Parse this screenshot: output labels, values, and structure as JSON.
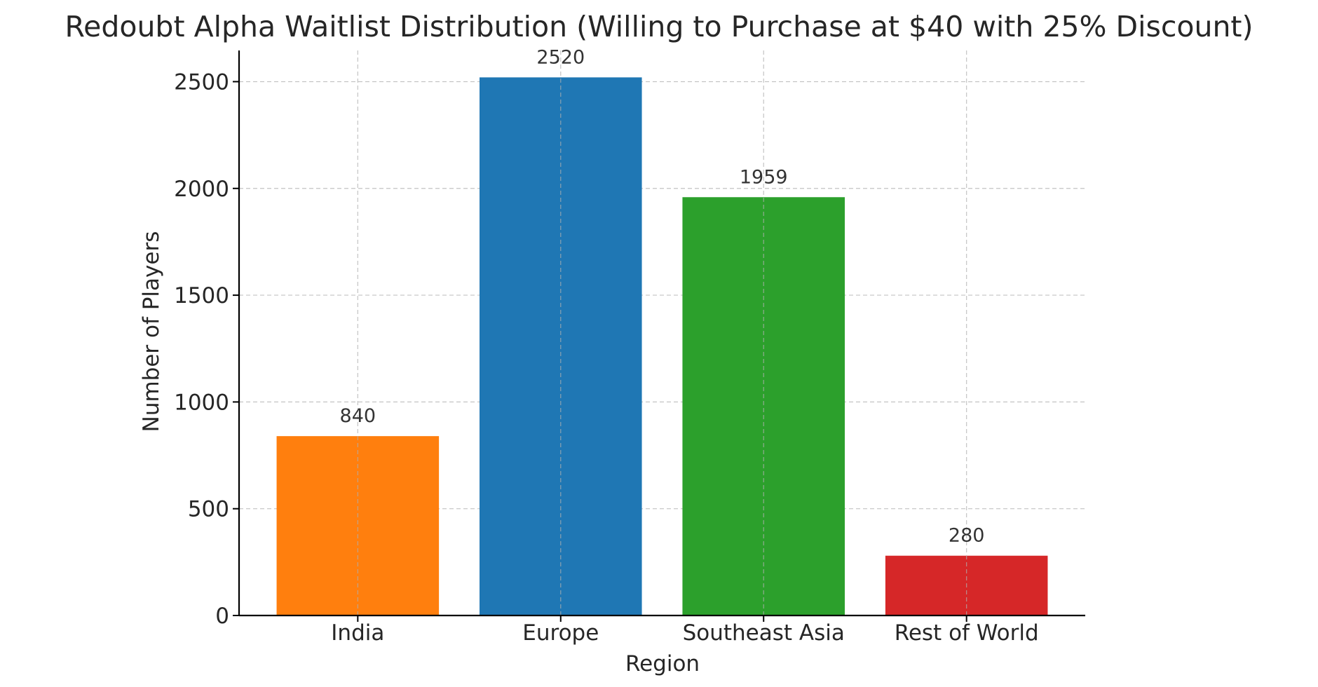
{
  "chart_data": {
    "type": "bar",
    "title": "Redoubt Alpha Waitlist Distribution (Willing to Purchase at $40 with 25% Discount)",
    "xlabel": "Region",
    "ylabel": "Number of Players",
    "categories": [
      "India",
      "Europe",
      "Southeast Asia",
      "Rest of World"
    ],
    "values": [
      840,
      2520,
      1959,
      280
    ],
    "data_labels": [
      "840",
      "2520",
      "1959",
      "280"
    ],
    "colors": [
      "#ff7f0e",
      "#1f77b4",
      "#2ca02c",
      "#d62728"
    ],
    "ylim": [
      0,
      2646
    ],
    "yticks": [
      0,
      500,
      1000,
      1500,
      2000,
      2500
    ],
    "ytick_labels": [
      "0",
      "500",
      "1000",
      "1500",
      "2000",
      "2500"
    ],
    "grid": true,
    "legend": "none"
  }
}
